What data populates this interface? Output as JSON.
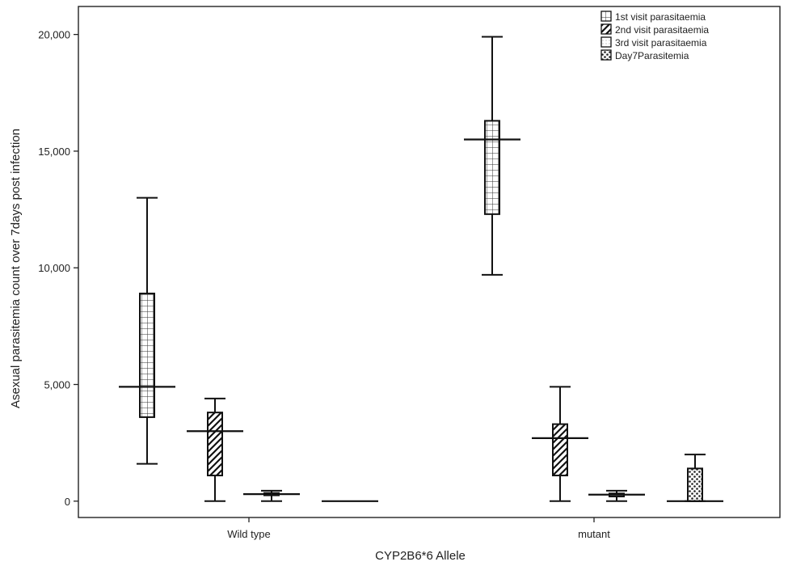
{
  "chart_data": {
    "type": "boxplot",
    "xlabel": "CYP2B6*6 Allele",
    "ylabel": "Asexual parasitemia count over 7days post infection",
    "ylim": [
      -700,
      21200
    ],
    "yticks": [
      0,
      5000,
      10000,
      15000,
      20000
    ],
    "ytick_labels": [
      "0",
      "5,000",
      "10,000",
      "15,000",
      "20,000"
    ],
    "categories": [
      "Wild type",
      "mutant"
    ],
    "legend_position": "top-right",
    "series": [
      {
        "name": "1st visit parasitaemia",
        "pattern": "grid",
        "boxes": [
          {
            "min": 1600,
            "q1": 3600,
            "median": 4900,
            "q3": 8900,
            "max": 13000
          },
          {
            "min": 9700,
            "q1": 12300,
            "median": 15500,
            "q3": 16300,
            "max": 19900
          }
        ]
      },
      {
        "name": "2nd visit parasitaemia",
        "pattern": "diagonal",
        "boxes": [
          {
            "min": 0,
            "q1": 1100,
            "median": 3000,
            "q3": 3800,
            "max": 4400
          },
          {
            "min": 0,
            "q1": 1100,
            "median": 2700,
            "q3": 3300,
            "max": 4900
          }
        ]
      },
      {
        "name": "3rd visit parasitaemia",
        "pattern": "dots",
        "boxes": [
          {
            "min": 0,
            "q1": 250,
            "median": 300,
            "q3": 350,
            "max": 450
          },
          {
            "min": 0,
            "q1": 200,
            "median": 280,
            "q3": 330,
            "max": 450
          }
        ]
      },
      {
        "name": "Day7Parasitemia",
        "pattern": "checker",
        "boxes": [
          {
            "min": 0,
            "q1": 0,
            "median": 0,
            "q3": 0,
            "max": 0
          },
          {
            "min": 0,
            "q1": 0,
            "median": 0,
            "q3": 1400,
            "max": 2000
          }
        ]
      }
    ]
  }
}
